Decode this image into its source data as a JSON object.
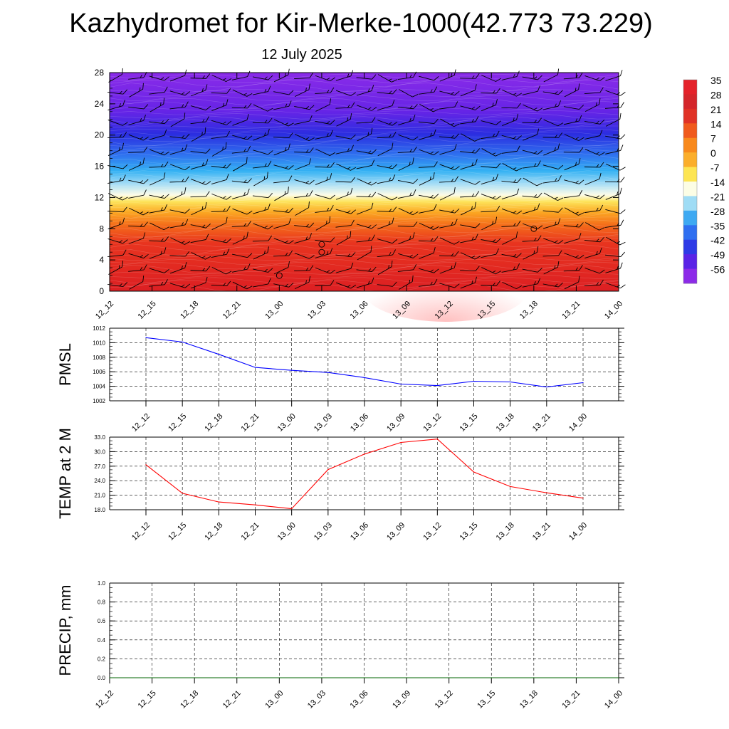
{
  "title": "Kazhydromet for Kir-Merke-1000(42.773 73.229)",
  "subtitle": "12 July 2025",
  "time_labels": [
    "12_12",
    "12_15",
    "12_18",
    "12_21",
    "13_00",
    "13_03",
    "13_06",
    "13_09",
    "13_12",
    "13_15",
    "13_18",
    "13_21",
    "14_00"
  ],
  "chart_data": [
    {
      "type": "heatmap",
      "title": "",
      "xlabel": "",
      "ylabel": "",
      "x": [
        "12_12",
        "12_15",
        "12_18",
        "12_21",
        "13_00",
        "13_03",
        "13_06",
        "13_09",
        "13_12",
        "13_15",
        "13_18",
        "13_21",
        "14_00"
      ],
      "y_ticks": [
        0,
        4,
        8,
        12,
        16,
        20,
        24,
        28
      ],
      "ylim": [
        0,
        28
      ],
      "description_of_field": "temperature by height with wind barbs",
      "colorbar": {
        "labels": [
          "35",
          "28",
          "21",
          "14",
          "7",
          "0",
          "-7",
          "-14",
          "-21",
          "-28",
          "-35",
          "-42",
          "-49",
          "-56"
        ],
        "colors": [
          "#e4222a",
          "#d4262b",
          "#e03226",
          "#f05a1c",
          "#f8891c",
          "#fbae2b",
          "#fde553",
          "#fcfde5",
          "#9fdcf5",
          "#3ea9f2",
          "#2f6ff0",
          "#2e3ae6",
          "#5a23e6",
          "#8c2ae8"
        ]
      },
      "grid": false
    },
    {
      "type": "line",
      "ylabel": "PMSL",
      "x": [
        "12_12",
        "12_15",
        "12_18",
        "12_21",
        "13_00",
        "13_03",
        "13_06",
        "13_09",
        "13_12",
        "13_15",
        "13_18",
        "13_21",
        "14_00"
      ],
      "values": [
        1010.7,
        1010.1,
        1008.4,
        1006.6,
        1006.2,
        1005.9,
        1005.2,
        1004.3,
        1004.1,
        1004.7,
        1004.6,
        1003.9,
        1004.5
      ],
      "ylim": [
        1002,
        1012
      ],
      "yticks": [
        "1002",
        "1004",
        "1006",
        "1008",
        "1010",
        "1012"
      ],
      "color": "#0000ff",
      "grid": true
    },
    {
      "type": "line",
      "ylabel": "TEMP at 2 M",
      "x": [
        "12_12",
        "12_15",
        "12_18",
        "12_21",
        "13_00",
        "13_03",
        "13_06",
        "13_09",
        "13_12",
        "13_15",
        "13_18",
        "13_21",
        "14_00"
      ],
      "values": [
        27.3,
        21.4,
        19.6,
        19.0,
        18.2,
        26.3,
        29.5,
        31.9,
        32.6,
        25.8,
        22.8,
        21.5,
        20.4
      ],
      "ylim": [
        18,
        33
      ],
      "yticks": [
        "18.0",
        "21.0",
        "24.0",
        "27.0",
        "30.0",
        "33.0"
      ],
      "color": "#ff0000",
      "grid": true
    },
    {
      "type": "line",
      "ylabel": "PRECIP, mm",
      "x": [
        "12_12",
        "12_15",
        "12_18",
        "12_21",
        "13_00",
        "13_03",
        "13_06",
        "13_09",
        "13_12",
        "13_15",
        "13_18",
        "13_21",
        "14_00"
      ],
      "values": [
        0,
        0,
        0,
        0,
        0,
        0,
        0,
        0,
        0,
        0,
        0,
        0,
        0
      ],
      "ylim": [
        0,
        1
      ],
      "yticks": [
        "0.0",
        "0.2",
        "0.4",
        "0.6",
        "0.8",
        "1.0"
      ],
      "color": "#006400",
      "grid": true
    }
  ]
}
